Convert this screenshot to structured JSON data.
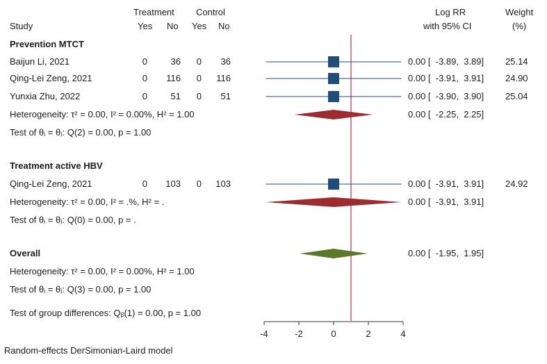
{
  "header": {
    "treatment": "Treatment",
    "control": "Control",
    "study": "Study",
    "yes_t": "Yes",
    "no_t": "No",
    "yes_c": "Yes",
    "no_c": "No",
    "logrr": "Log RR",
    "ci": "with 95% CI",
    "weight": "Weight",
    "pct": "(%)"
  },
  "groups": [
    {
      "name": "Prevention MTCT",
      "studies": [
        {
          "name": "Baijun Li, 2021",
          "t_yes": "0",
          "t_no": "36",
          "c_yes": "0",
          "c_no": "36",
          "est_text": "0.00 [  -3.89,  3.89]",
          "weight": "25.14",
          "est": 0,
          "lo": -3.89,
          "hi": 3.89
        },
        {
          "name": "Qing-Lei Zeng, 2021",
          "t_yes": "0",
          "t_no": "116",
          "c_yes": "0",
          "c_no": "116",
          "est_text": "0.00 [  -3.91,  3.91]",
          "weight": "24.90",
          "est": 0,
          "lo": -3.91,
          "hi": 3.91
        },
        {
          "name": "Yunxia Zhu, 2022",
          "t_yes": "0",
          "t_no": "51",
          "c_yes": "0",
          "c_no": "51",
          "est_text": "0.00 [  -3.90,  3.90]",
          "weight": "25.04",
          "est": 0,
          "lo": -3.9,
          "hi": 3.9
        }
      ],
      "heterogeneity": "Heterogeneity: τ² = 0.00, I² = 0.00%, H² = 1.00",
      "test": "Test of θᵢ = θⱼ: Q(2) = 0.00, p = 1.00",
      "pooled": {
        "est_text": "0.00 [  -2.25,  2.25]",
        "est": 0,
        "lo": -2.25,
        "hi": 2.25
      }
    },
    {
      "name": "Treatment active HBV",
      "studies": [
        {
          "name": "Qing-Lei Zeng, 2021",
          "t_yes": "0",
          "t_no": "103",
          "c_yes": "0",
          "c_no": "103",
          "est_text": "0.00 [  -3.91,  3.91]",
          "weight": "24.92",
          "est": 0,
          "lo": -3.91,
          "hi": 3.91
        }
      ],
      "heterogeneity": "Heterogeneity: τ² = 0.00, I² = .%, H² = .",
      "test": "Test of θᵢ = θⱼ: Q(0) = 0.00, p = .",
      "pooled": {
        "est_text": "0.00 [  -3.91,  3.91]",
        "est": 0,
        "lo": -3.91,
        "hi": 3.91
      }
    }
  ],
  "overall": {
    "name": "Overall",
    "est_text": "0.00 [  -1.95,  1.95]",
    "est": 0,
    "lo": -1.95,
    "hi": 1.95,
    "heterogeneity": "Heterogeneity: τ² = 0.00, I² = 0.00%, H² = 1.00",
    "test": "Test of θᵢ = θⱼ: Q(3) = 0.00, p = 1.00",
    "group_test": "Test of group differences: Qᵦ(1) = 0.00, p = 1.00"
  },
  "footer": "Random-effects DerSimonian-Laird model",
  "chart_data": {
    "type": "forest",
    "xlim": [
      -4,
      4
    ],
    "xticks": [
      -4,
      -2,
      0,
      2,
      4
    ],
    "reference_line": 1,
    "colors": {
      "study_marker": "#1f4e79",
      "ci_line": "#1f4e79",
      "subgroup_diamond": "#9b2d30",
      "overall_diamond": "#5a7a2a",
      "reference_line": "#c0405a",
      "axis": "#333333"
    }
  }
}
